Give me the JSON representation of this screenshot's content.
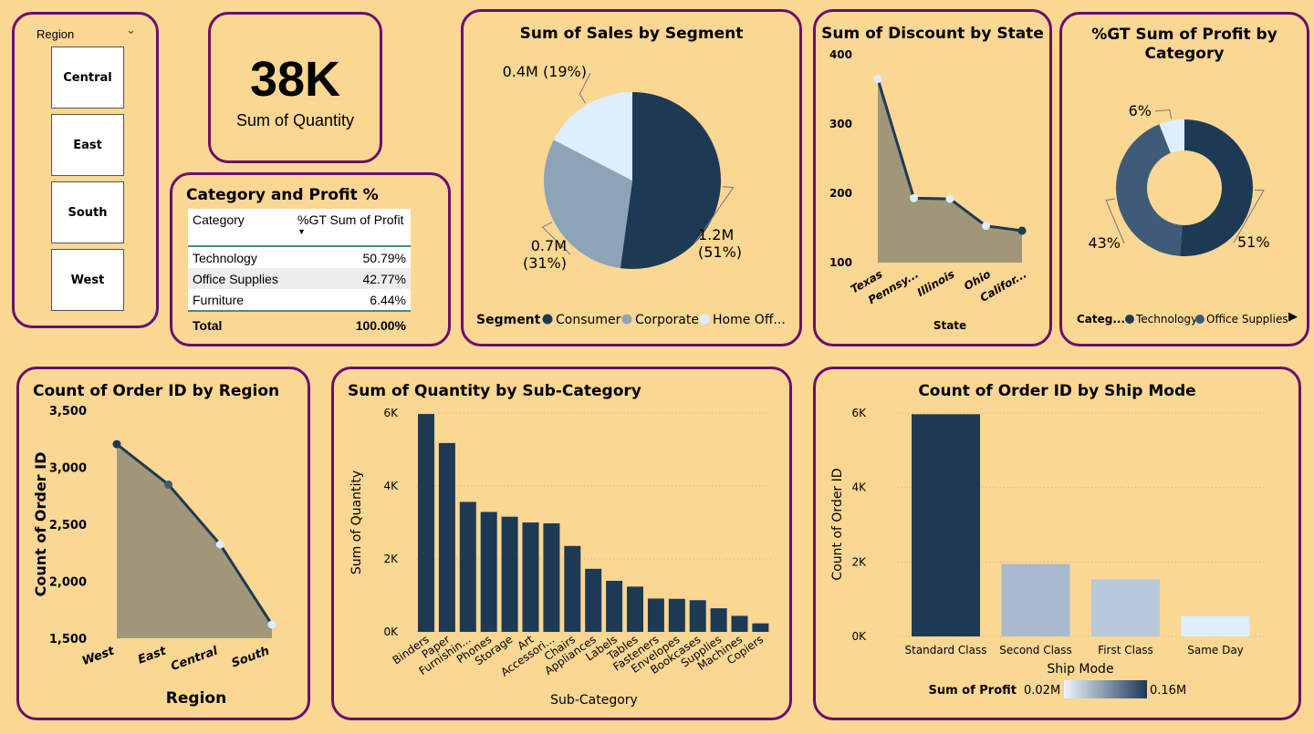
{
  "slicer": {
    "title": "Region",
    "items": [
      "Central",
      "East",
      "South",
      "West"
    ]
  },
  "kpi": {
    "value": "38K",
    "label": "Sum of Quantity"
  },
  "profit_table": {
    "title": "Category and Profit %",
    "col_category": "Category",
    "col_value": "%GT Sum of Profit",
    "rows": [
      {
        "category": "Technology",
        "value": "50.79%"
      },
      {
        "category": "Office Supplies",
        "value": "42.77%"
      },
      {
        "category": "Furniture",
        "value": "6.44%"
      }
    ],
    "total_label": "Total",
    "total_value": "100.00%"
  },
  "colors": {
    "background": "#FBD794",
    "border": "#6A0F6E",
    "navy": "#1D3A55",
    "slate": "#3E5C78",
    "grayblue": "#8DA3B8",
    "pale": "#DDEEFF",
    "area": "#A09678"
  },
  "chart_data": [
    {
      "id": "sales_segment",
      "type": "pie",
      "title": "Sum of Sales by Segment",
      "legend_title": "Segment",
      "legend_position": "bottom",
      "categories": [
        "Consumer",
        "Corporate",
        "Home Off..."
      ],
      "values": [
        1.2,
        0.7,
        0.4
      ],
      "percents": [
        51,
        31,
        19
      ],
      "labels": [
        "1.2M (51%)",
        "0.7M (31%)",
        "0.4M (19%)"
      ],
      "colors": [
        "#1D3A55",
        "#8DA3B8",
        "#DDEEFF"
      ]
    },
    {
      "id": "discount_state",
      "type": "area",
      "title": "Sum of Discount by State",
      "xlabel": "State",
      "ylabel": "",
      "categories": [
        "Texas",
        "Pennsy...",
        "Illinois",
        "Ohio",
        "Califor..."
      ],
      "values": [
        365,
        193,
        192,
        153,
        146
      ],
      "ylim": [
        100,
        400
      ],
      "yticks": [
        100,
        200,
        300,
        400
      ],
      "ytick_labels": [
        "100",
        "200",
        "300",
        "400"
      ]
    },
    {
      "id": "profit_category",
      "type": "pie",
      "variant": "donut",
      "title": "%GT Sum of Profit by Category",
      "title_lines": [
        "%GT Sum of Profit by",
        "Category"
      ],
      "legend_title": "Categ...",
      "legend_position": "bottom",
      "categories": [
        "Technology",
        "Office Supplies",
        "Furniture"
      ],
      "legend_visible": [
        "Technology",
        "Office Supplies"
      ],
      "values": [
        51,
        43,
        6
      ],
      "labels": [
        "51%",
        "43%",
        "6%"
      ],
      "colors": [
        "#1D3A55",
        "#3E5C78",
        "#DDEEFF"
      ]
    },
    {
      "id": "orders_region",
      "type": "area",
      "title": "Count of Order ID by Region",
      "xlabel": "Region",
      "ylabel": "Count of Order ID",
      "categories": [
        "West",
        "East",
        "Central",
        "South"
      ],
      "values": [
        3203,
        2848,
        2323,
        1620
      ],
      "ylim": [
        1500,
        3500
      ],
      "yticks": [
        1500,
        2000,
        2500,
        3000,
        3500
      ],
      "ytick_labels": [
        "1,500",
        "2,000",
        "2,500",
        "3,000",
        "3,500"
      ]
    },
    {
      "id": "qty_subcategory",
      "type": "bar",
      "title": "Sum of Quantity by Sub-Category",
      "xlabel": "Sub-Category",
      "ylabel": "Sum of Quantity",
      "categories": [
        "Binders",
        "Paper",
        "Furnishin...",
        "Phones",
        "Storage",
        "Art",
        "Accessori...",
        "Chairs",
        "Appliances",
        "Labels",
        "Tables",
        "Fasteners",
        "Envelopes",
        "Bookcases",
        "Supplies",
        "Machines",
        "Copiers"
      ],
      "values": [
        5974,
        5178,
        3563,
        3289,
        3158,
        3000,
        2976,
        2356,
        1729,
        1400,
        1241,
        914,
        906,
        868,
        647,
        440,
        234
      ],
      "ylim": [
        0,
        6000
      ],
      "yticks": [
        0,
        2000,
        4000,
        6000
      ],
      "ytick_labels": [
        "0K",
        "2K",
        "4K",
        "6K"
      ]
    },
    {
      "id": "orders_shipmode",
      "type": "bar",
      "title": "Count of Order ID by Ship Mode",
      "xlabel": "Ship Mode",
      "ylabel": "Count of Order ID",
      "categories": [
        "Standard Class",
        "Second Class",
        "First Class",
        "Same Day"
      ],
      "values": [
        5968,
        1945,
        1538,
        543
      ],
      "bar_colors": [
        "#1D3A55",
        "#A8BBCE",
        "#B8C8DA",
        "#DDEEFF"
      ],
      "ylim": [
        0,
        6000
      ],
      "yticks": [
        0,
        2000,
        4000,
        6000
      ],
      "ytick_labels": [
        "0K",
        "2K",
        "4K",
        "6K"
      ],
      "color_legend_title": "Sum of Profit",
      "color_legend_min": "0.02M",
      "color_legend_max": "0.16M"
    }
  ]
}
